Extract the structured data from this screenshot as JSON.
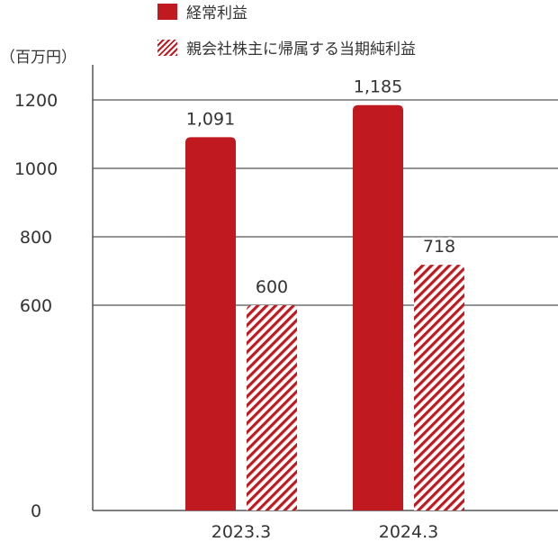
{
  "chart_data": {
    "type": "bar",
    "unit_label": "（百万円）",
    "categories": [
      "2023.3",
      "2024.3"
    ],
    "series": [
      {
        "name": "経常利益",
        "values": [
          1091,
          1185
        ],
        "labels": [
          "1,091",
          "1,185"
        ],
        "color": "#c0191f",
        "pattern": "solid"
      },
      {
        "name": "親会社株主に帰属する当期純利益",
        "values": [
          600,
          718
        ],
        "labels": [
          "600",
          "718"
        ],
        "color": "#c0191f",
        "pattern": "hatched"
      }
    ],
    "y_ticks": [
      0,
      600,
      800,
      1000,
      1200
    ],
    "y_tick_labels": [
      "0",
      "600",
      "800",
      "1000",
      "1200"
    ],
    "ylim": [
      0,
      1200
    ],
    "axis_break": "between 0 and 600",
    "grid": true,
    "legend_position": "top"
  }
}
